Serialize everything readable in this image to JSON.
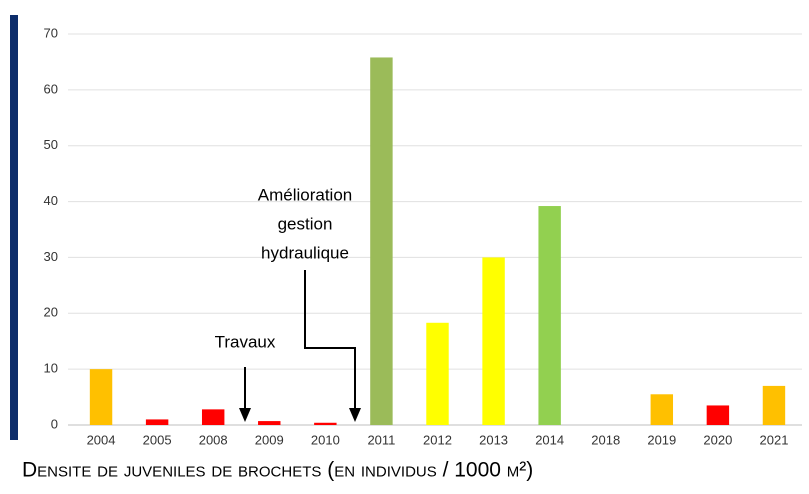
{
  "chart_data": {
    "type": "bar",
    "title": "Densite de juveniles de brochets (en individus / 1000 m²)",
    "categories": [
      "2004",
      "2005",
      "2008",
      "2009",
      "2010",
      "2011",
      "2012",
      "2013",
      "2014",
      "2018",
      "2019",
      "2020",
      "2021"
    ],
    "values": [
      10,
      1,
      2.8,
      0.7,
      0.4,
      65.8,
      18.3,
      30,
      39.2,
      0,
      5.5,
      3.5,
      7
    ],
    "colors": [
      "#ffc000",
      "#ff0000",
      "#ff0000",
      "#ff0000",
      "#ff0000",
      "#9bbb59",
      "#ffff00",
      "#ffff00",
      "#92d050",
      "#ffc000",
      "#ffc000",
      "#ff0000",
      "#ffc000"
    ],
    "ylim": [
      0,
      70
    ],
    "yticks": [
      0,
      10,
      20,
      30,
      40,
      50,
      60,
      70
    ],
    "grid": true,
    "annotations": {
      "travaux": "Travaux",
      "gestion": [
        "Amélioration",
        "gestion",
        "hydraulique"
      ]
    }
  }
}
